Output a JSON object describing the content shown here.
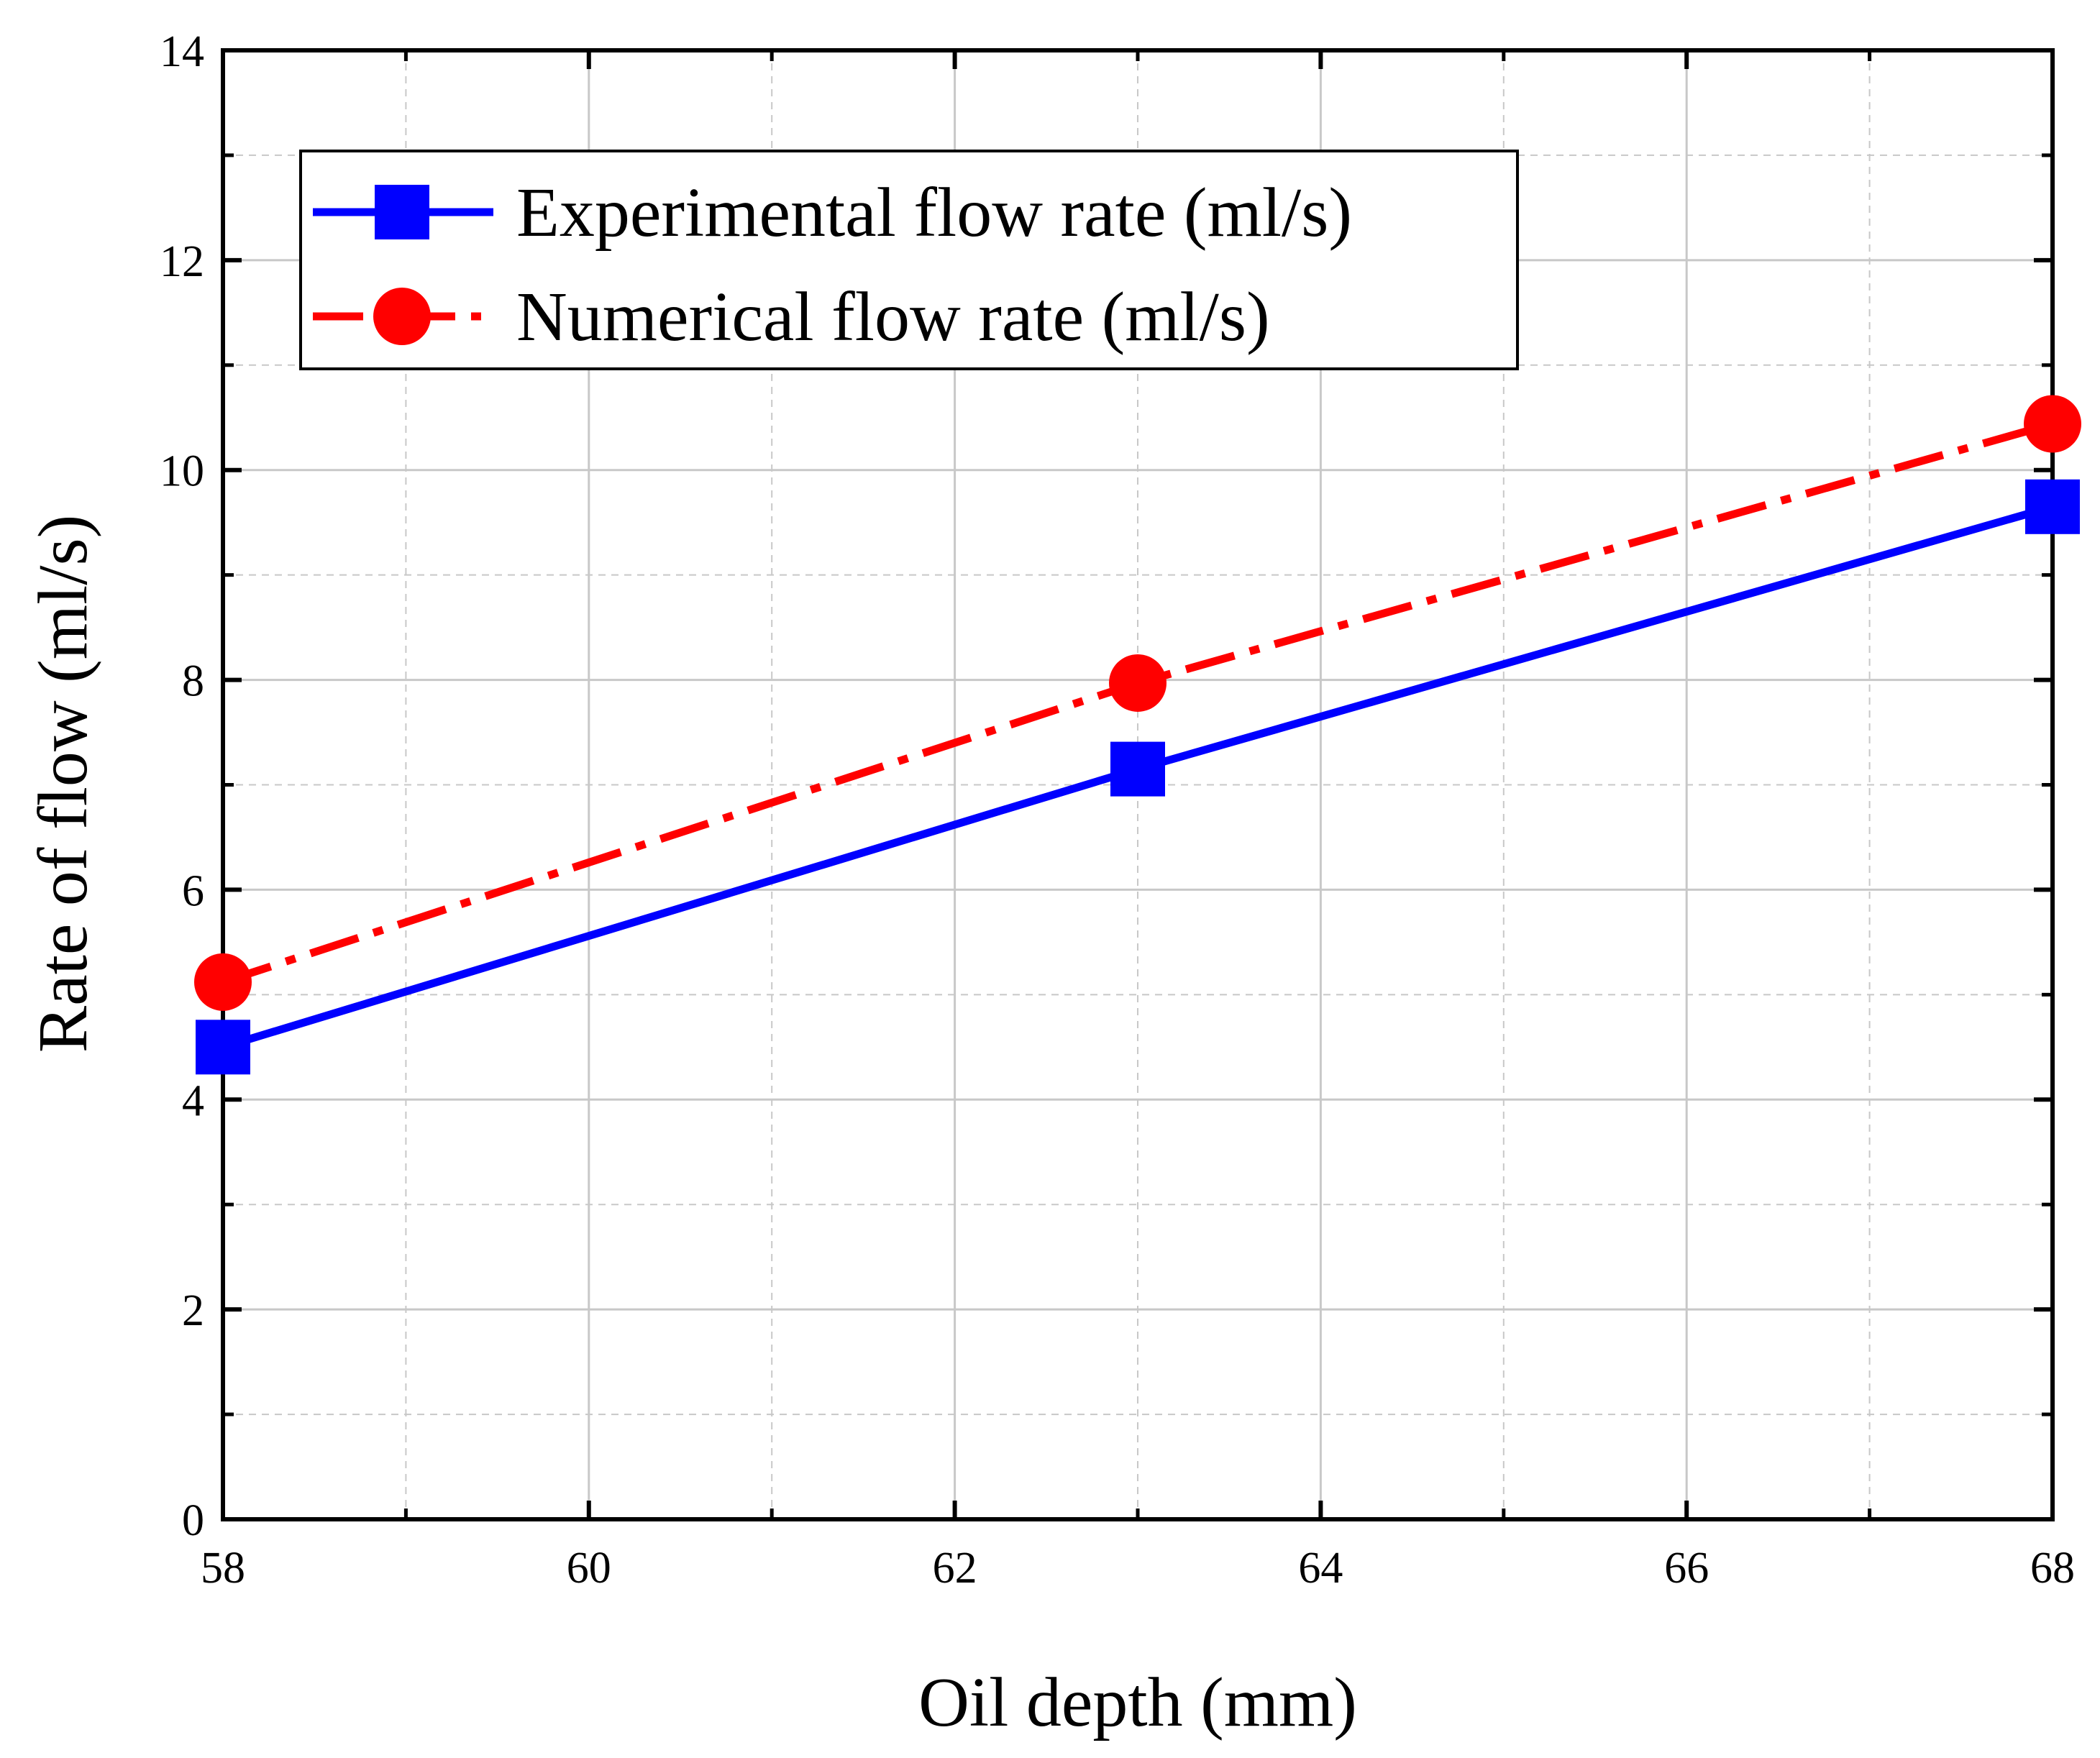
{
  "chart_data": {
    "type": "line",
    "title": "",
    "xlabel": "Oil depth (mm)",
    "ylabel": "Rate of flow  (ml/s)",
    "xlim": [
      58,
      68
    ],
    "ylim": [
      0,
      14
    ],
    "x_ticks": [
      58,
      60,
      62,
      64,
      66,
      68
    ],
    "y_ticks": [
      0,
      2,
      4,
      6,
      8,
      10,
      12,
      14
    ],
    "grid": true,
    "legend_position": "top-left",
    "series": [
      {
        "name": "Experimental flow rate (ml/s)",
        "x": [
          58,
          63,
          68
        ],
        "y": [
          4.5,
          7.15,
          9.65
        ],
        "color": "#0000ff",
        "marker": "square",
        "line_style": "solid"
      },
      {
        "name": "Numerical flow rate (ml/s)",
        "x": [
          58,
          63,
          68
        ],
        "y": [
          5.12,
          7.97,
          10.44
        ],
        "color": "#ff0000",
        "marker": "circle",
        "line_style": "dash-dot"
      }
    ]
  }
}
